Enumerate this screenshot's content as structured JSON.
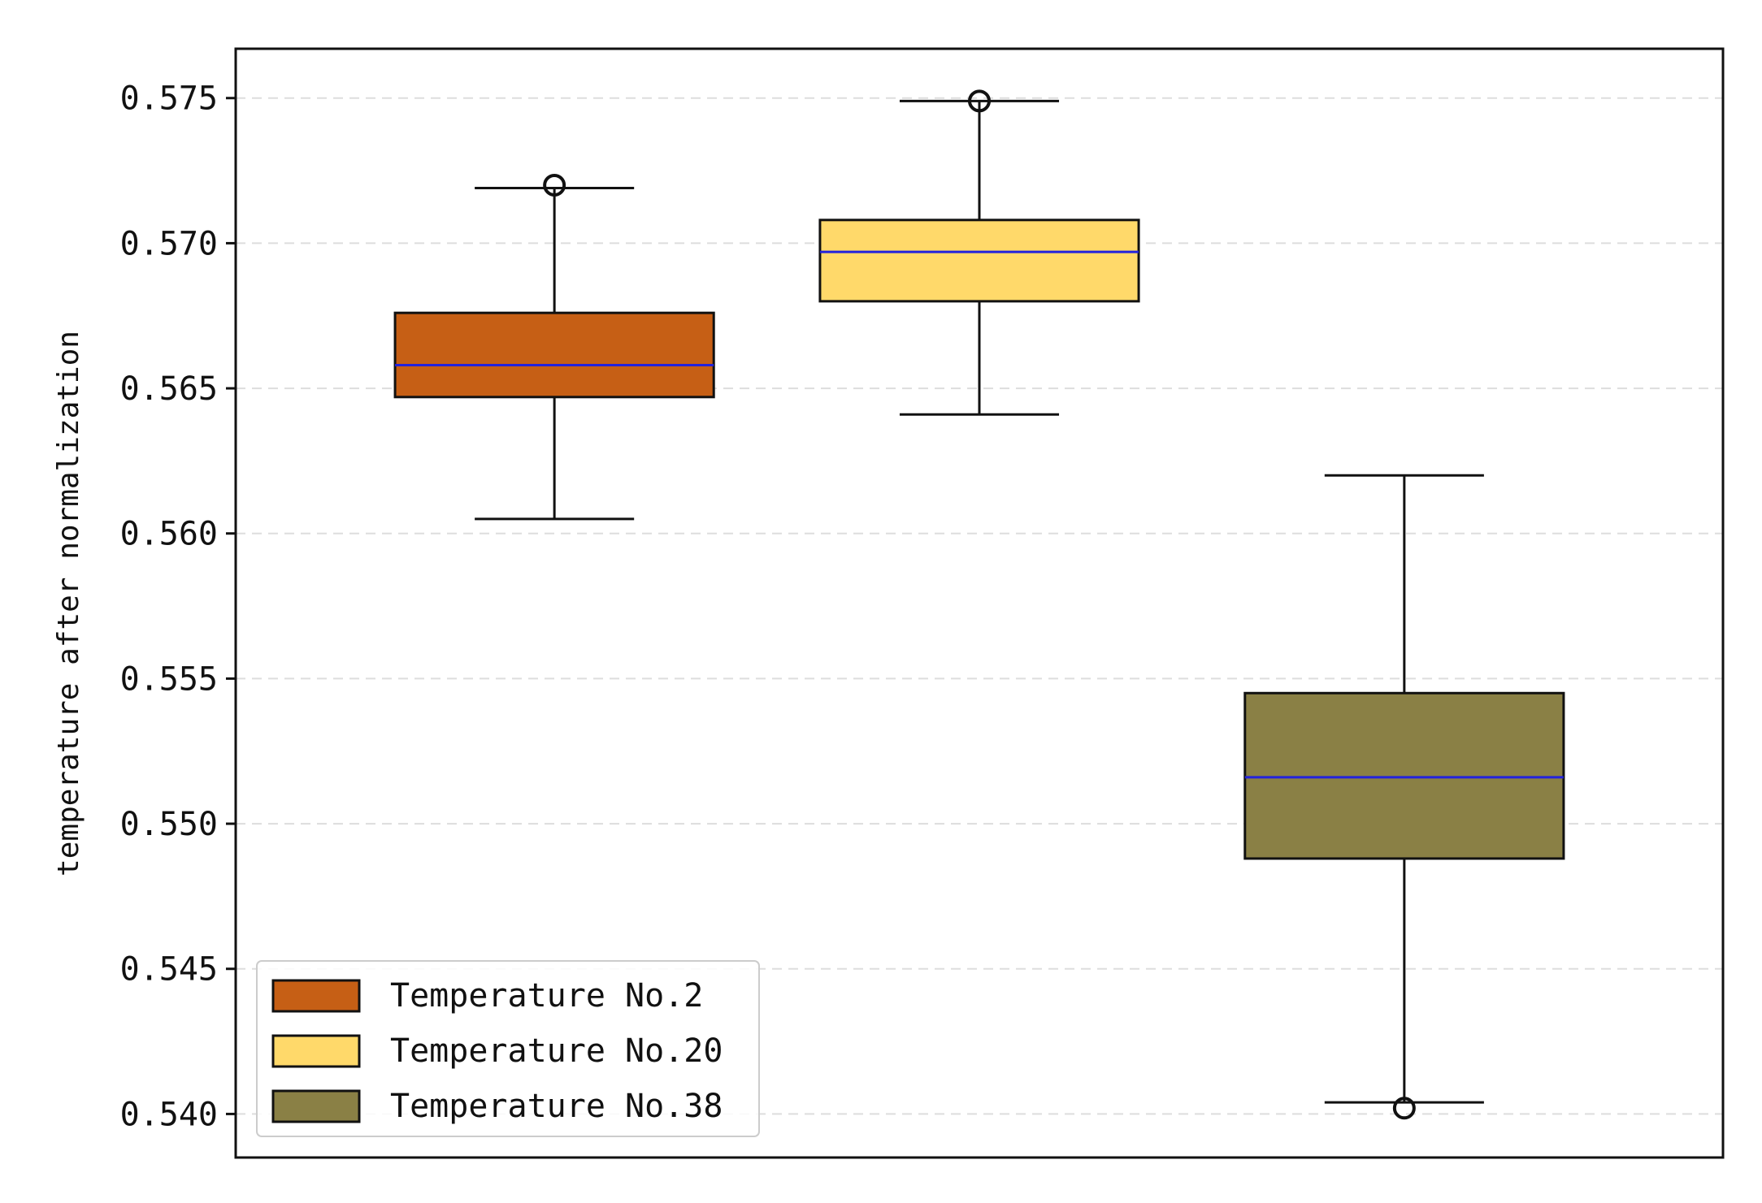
{
  "chart_data": {
    "type": "box",
    "title": "",
    "xlabel": "",
    "ylabel": "temperature after normalization",
    "ylim": [
      0.5385,
      0.5767
    ],
    "yticks": [
      0.575,
      0.57,
      0.565,
      0.56,
      0.555,
      0.55,
      0.545,
      0.54
    ],
    "ytick_labels": [
      "0.575",
      "0.570",
      "0.565",
      "0.560",
      "0.555",
      "0.550",
      "0.545",
      "0.540"
    ],
    "grid": "horizontal dashed",
    "legend_position": "lower-left",
    "median_color": "#2222dd",
    "series": [
      {
        "name": "Temperature No.2",
        "color": "#c65f15",
        "whisker_low": 0.5605,
        "q1": 0.5647,
        "median": 0.5658,
        "q3": 0.5676,
        "whisker_high": 0.5719,
        "outliers": [
          0.572
        ]
      },
      {
        "name": "Temperature No.20",
        "color": "#ffd96a",
        "whisker_low": 0.5641,
        "q1": 0.568,
        "median": 0.5697,
        "q3": 0.5708,
        "whisker_high": 0.5749,
        "outliers": [
          0.5749
        ]
      },
      {
        "name": "Temperature No.38",
        "color": "#8a8045",
        "whisker_low": 0.5404,
        "q1": 0.5488,
        "median": 0.5516,
        "q3": 0.5545,
        "whisker_high": 0.562,
        "outliers": [
          0.5402
        ]
      }
    ]
  }
}
